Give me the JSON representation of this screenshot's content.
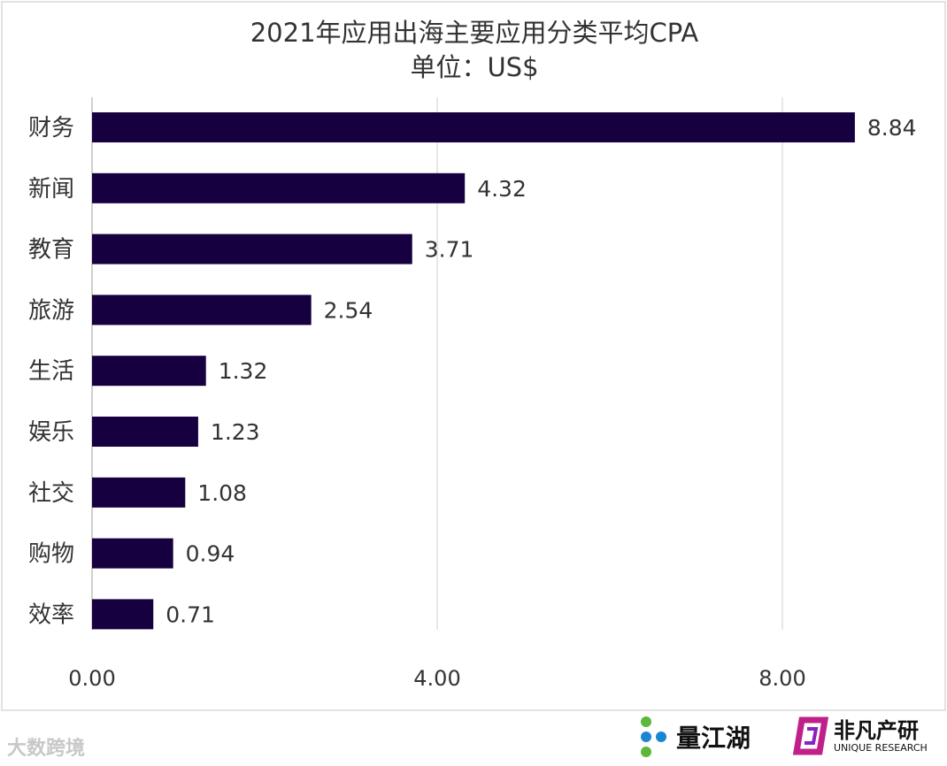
{
  "chart_data": {
    "type": "bar",
    "orientation": "horizontal",
    "title": "2021年应用出海主要应用分类平均CPA",
    "subtitle": "单位：US$",
    "categories": [
      "财务",
      "新闻",
      "教育",
      "旅游",
      "生活",
      "娱乐",
      "社交",
      "购物",
      "效率"
    ],
    "values": [
      8.84,
      4.32,
      3.71,
      2.54,
      1.32,
      1.23,
      1.08,
      0.94,
      0.71
    ],
    "data_labels": [
      "8.84",
      "4.32",
      "3.71",
      "2.54",
      "1.32",
      "1.23",
      "1.08",
      "0.94",
      "0.71"
    ],
    "xlim": [
      0,
      8.84
    ],
    "x_ticks": [
      0,
      4,
      8
    ],
    "x_tick_labels": [
      "0.00",
      "4.00",
      "8.00"
    ],
    "grid": "vertical",
    "bar_color": "#170040"
  },
  "watermark": "大数跨境",
  "logos": {
    "liangjianghu": "量江湖",
    "feifan": "非凡产研",
    "feifan_en": "UNIQUE RESEARCH"
  }
}
